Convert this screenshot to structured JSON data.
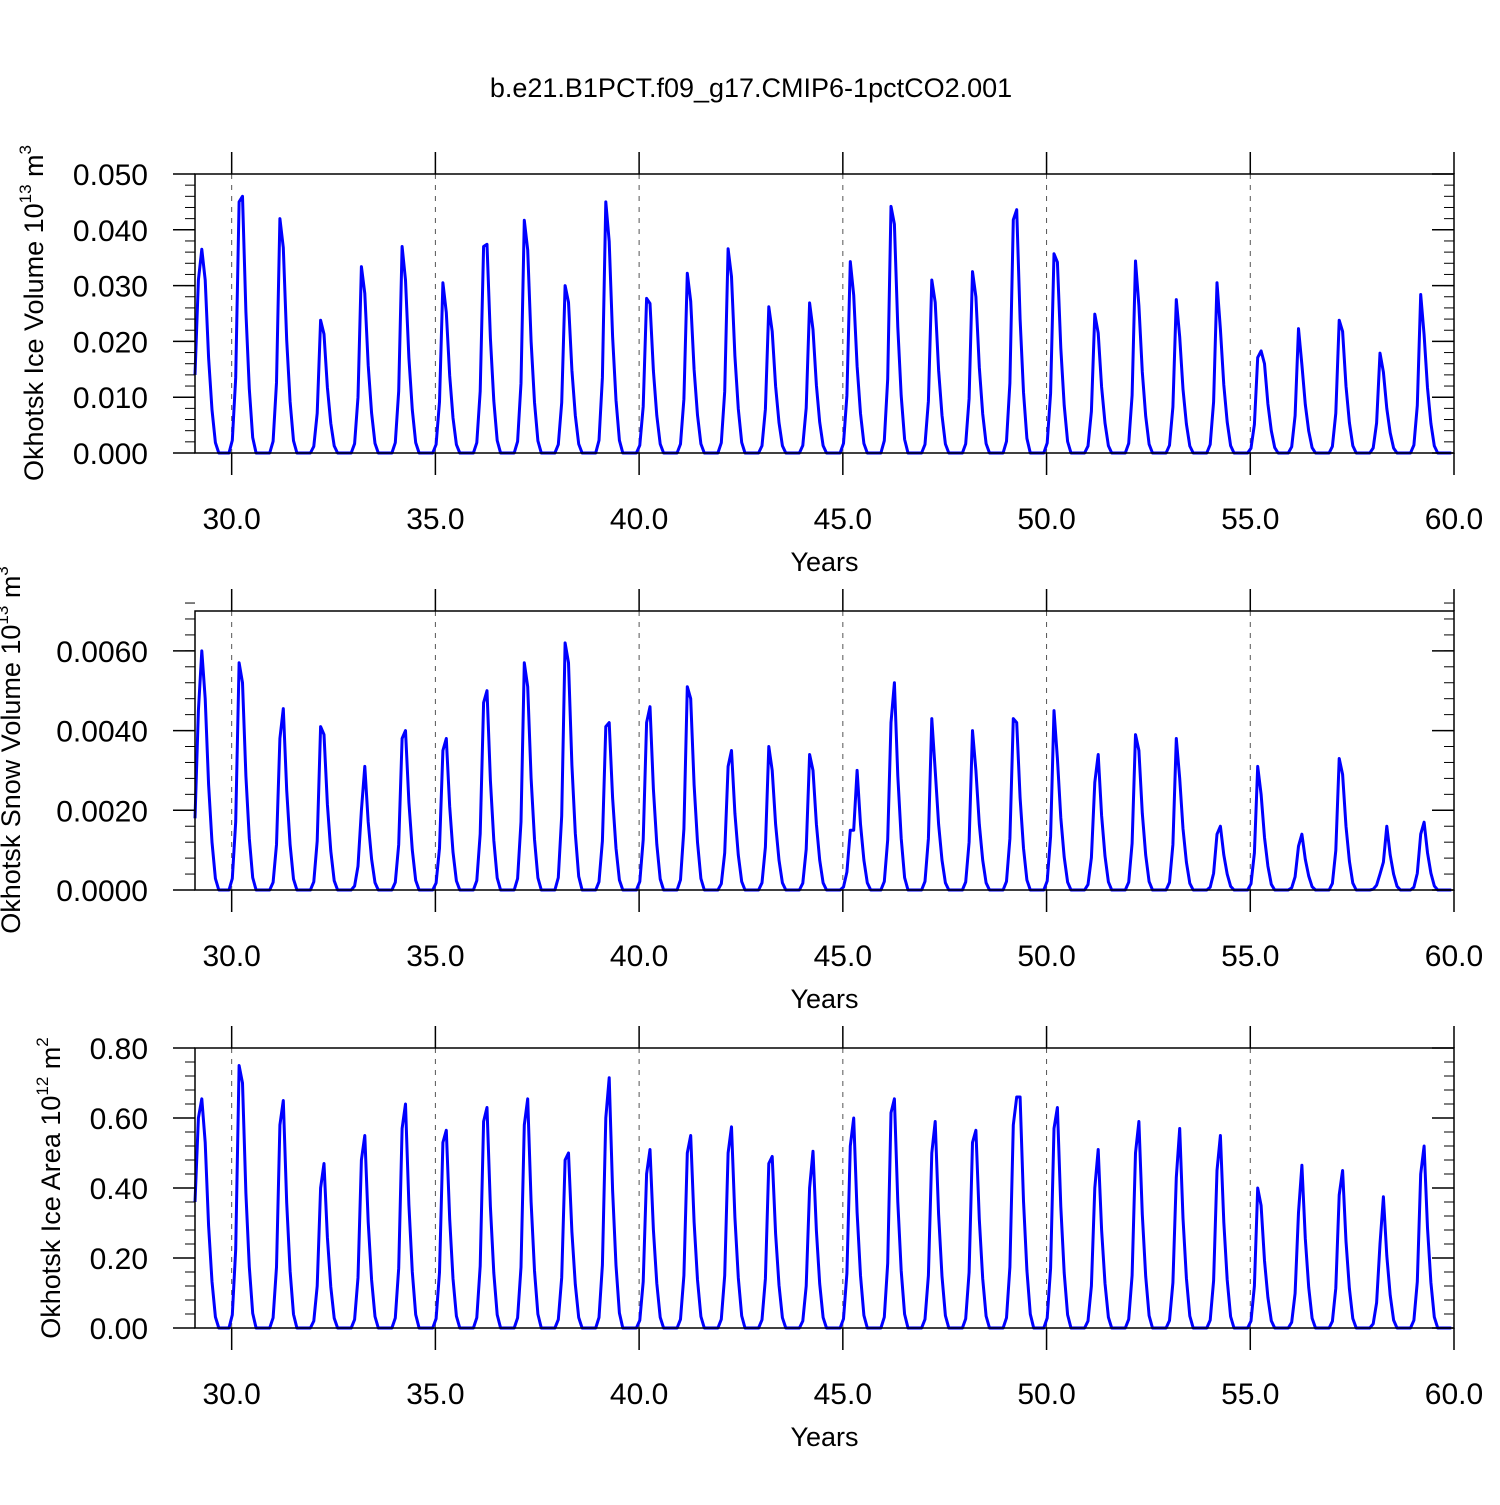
{
  "title": "b.e21.B1PCT.f09_g17.CMIP6-1pctCO2.001",
  "line_color": "#0000ff",
  "chart_data": [
    {
      "type": "line",
      "name": "ice-volume",
      "ylabel": {
        "text": "Okhotsk Ice Volume 10",
        "exp": "13",
        "unit": " m",
        "unit_exp": "3"
      },
      "xlabel": "Years",
      "xlim": [
        29.1,
        60.0
      ],
      "ylim": [
        0,
        0.05
      ],
      "xticks": [
        30,
        35,
        40,
        45,
        50,
        55,
        60
      ],
      "xtick_labels": [
        "30.0",
        "35.0",
        "40.0",
        "45.0",
        "50.0",
        "55.0",
        "60.0"
      ],
      "yticks": [
        0,
        0.01,
        0.02,
        0.03,
        0.04,
        0.05
      ],
      "ytick_labels": [
        "0.000",
        "0.010",
        "0.020",
        "0.030",
        "0.040",
        "0.050"
      ],
      "yminor_step": 0.002,
      "grid": "dashed vertical at major x ticks",
      "start": 29.1,
      "step": 0.0833333,
      "start_value": 0.014,
      "peaks": [
        [
          0.031,
          0.0365,
          0.031
        ],
        [
          0.045,
          0.046
        ],
        [
          0.042,
          0.0368
        ],
        [
          0.0238,
          0.0213
        ],
        [
          0.0334,
          0.0286
        ],
        [
          0.037,
          0.031
        ],
        [
          0.0305,
          0.0252
        ],
        [
          0.037,
          0.0374
        ],
        [
          0.0417,
          0.0364
        ],
        [
          0.03,
          0.027
        ],
        [
          0.045,
          0.0379
        ],
        [
          0.0277,
          0.0268
        ],
        [
          0.0322,
          0.0272
        ],
        [
          0.0366,
          0.0316
        ],
        [
          0.0262,
          0.0218
        ],
        [
          0.0269,
          0.0221
        ],
        [
          0.0343,
          0.0283
        ],
        [
          0.0442,
          0.041
        ],
        [
          0.031,
          0.027
        ],
        [
          0.0325,
          0.028
        ],
        [
          0.0418,
          0.0436
        ],
        [
          0.0357,
          0.0342
        ],
        [
          0.0249,
          0.0215
        ],
        [
          0.0344,
          0.0264
        ],
        [
          0.0275,
          0.0208
        ],
        [
          0.0305,
          0.0222
        ],
        [
          0.0171,
          0.0183,
          0.016
        ],
        [
          0.0223,
          0.0158
        ],
        [
          0.0238,
          0.0218
        ],
        [
          0.0179,
          0.0145
        ],
        [
          0.0284,
          0.0212
        ]
      ]
    },
    {
      "type": "line",
      "name": "snow-volume",
      "ylabel": {
        "text": "Okhotsk Snow Volume 10",
        "exp": "13",
        "unit": " m",
        "unit_exp": "3"
      },
      "xlabel": "Years",
      "xlim": [
        29.1,
        60.0
      ],
      "ylim": [
        0,
        0.007
      ],
      "xticks": [
        30,
        35,
        40,
        45,
        50,
        55,
        60
      ],
      "xtick_labels": [
        "30.0",
        "35.0",
        "40.0",
        "45.0",
        "50.0",
        "55.0",
        "60.0"
      ],
      "yticks": [
        0,
        0.002,
        0.004,
        0.006
      ],
      "ytick_labels": [
        "0.0000",
        "0.0020",
        "0.0040",
        "0.0060"
      ],
      "yminor_step": 0.0004,
      "grid": "dashed vertical at major x ticks",
      "start": 29.1,
      "step": 0.0833333,
      "start_value": 0.0018,
      "peaks": [
        [
          0.0045,
          0.006,
          0.0048
        ],
        [
          0.0057,
          0.0052
        ],
        [
          0.0038,
          0.00455
        ],
        [
          0.0041,
          0.0039
        ],
        [
          0.002,
          0.0031
        ],
        [
          0.0038,
          0.004
        ],
        [
          0.0035,
          0.0038
        ],
        [
          0.0047,
          0.005
        ],
        [
          0.0057,
          0.0051
        ],
        [
          0.0062,
          0.0057
        ],
        [
          0.0041,
          0.0042
        ],
        [
          0.0042,
          0.0046
        ],
        [
          0.0051,
          0.0048
        ],
        [
          0.0031,
          0.0035
        ],
        [
          0.0036,
          0.003
        ],
        [
          0.0034,
          0.003
        ],
        [
          0.0015,
          0.0015,
          0.003
        ],
        [
          0.0042,
          0.0052
        ],
        [
          0.0043,
          0.003
        ],
        [
          0.004,
          0.003
        ],
        [
          0.0043,
          0.0042
        ],
        [
          0.0045,
          0.0033
        ],
        [
          0.0027,
          0.0034
        ],
        [
          0.0039,
          0.0035
        ],
        [
          0.0038,
          0.0028
        ],
        [
          0.0014,
          0.0016
        ],
        [
          0.0031,
          0.0024
        ],
        [
          0.0011,
          0.0014
        ],
        [
          0.0033,
          0.0029
        ],
        [
          0.0004,
          0.0007,
          0.0016
        ],
        [
          0.0014,
          0.0017
        ]
      ]
    },
    {
      "type": "line",
      "name": "ice-area",
      "ylabel": {
        "text": "Okhotsk Ice Area 10",
        "exp": "12",
        "unit": " m",
        "unit_exp": "2"
      },
      "xlabel": "Years",
      "xlim": [
        29.1,
        60.0
      ],
      "ylim": [
        0,
        0.8
      ],
      "xticks": [
        30,
        35,
        40,
        45,
        50,
        55,
        60
      ],
      "xtick_labels": [
        "30.0",
        "35.0",
        "40.0",
        "45.0",
        "50.0",
        "55.0",
        "60.0"
      ],
      "yticks": [
        0,
        0.2,
        0.4,
        0.6,
        0.8
      ],
      "ytick_labels": [
        "0.00",
        "0.20",
        "0.40",
        "0.60",
        "0.80"
      ],
      "yminor_step": 0.04,
      "grid": "dashed vertical at major x ticks",
      "start": 29.1,
      "step": 0.0833333,
      "start_value": 0.36,
      "peaks": [
        [
          0.6,
          0.655,
          0.53
        ],
        [
          0.75,
          0.7
        ],
        [
          0.58,
          0.65
        ],
        [
          0.4,
          0.47
        ],
        [
          0.48,
          0.55
        ],
        [
          0.57,
          0.64
        ],
        [
          0.53,
          0.565
        ],
        [
          0.59,
          0.63
        ],
        [
          0.58,
          0.655
        ],
        [
          0.48,
          0.5
        ],
        [
          0.6,
          0.715
        ],
        [
          0.44,
          0.51
        ],
        [
          0.5,
          0.55
        ],
        [
          0.5,
          0.575
        ],
        [
          0.47,
          0.49
        ],
        [
          0.4,
          0.505
        ],
        [
          0.52,
          0.6
        ],
        [
          0.615,
          0.655
        ],
        [
          0.5,
          0.59
        ],
        [
          0.53,
          0.565
        ],
        [
          0.58,
          0.66,
          0.66
        ],
        [
          0.57,
          0.63
        ],
        [
          0.4,
          0.51
        ],
        [
          0.5,
          0.59
        ],
        [
          0.43,
          0.57
        ],
        [
          0.45,
          0.55
        ],
        [
          0.4,
          0.35
        ],
        [
          0.33,
          0.465
        ],
        [
          0.38,
          0.45
        ],
        [
          0.24,
          0.375
        ],
        [
          0.44,
          0.52
        ]
      ]
    }
  ]
}
